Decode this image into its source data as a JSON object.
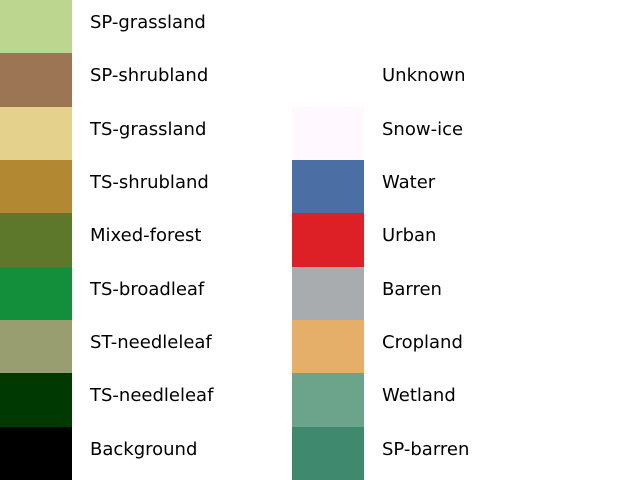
{
  "legend": {
    "left_column": [
      {
        "label": "SP-grassland",
        "color": "#bdd68f"
      },
      {
        "label": "SP-shrubland",
        "color": "#9c7654"
      },
      {
        "label": "TS-grassland",
        "color": "#e4d28c"
      },
      {
        "label": "TS-shrubland",
        "color": "#b38832"
      },
      {
        "label": "Mixed-forest",
        "color": "#5e782b"
      },
      {
        "label": "TS-broadleaf",
        "color": "#138f3c"
      },
      {
        "label": "ST-needleleaf",
        "color": "#989e70"
      },
      {
        "label": "TS-needleleaf",
        "color": "#003902"
      },
      {
        "label": "Background",
        "color": "#000000"
      }
    ],
    "right_column": [
      {
        "label": "",
        "color": "#ffffff"
      },
      {
        "label": "Unknown",
        "color": "#ffffff"
      },
      {
        "label": "Snow-ice",
        "color": "#fff8fe"
      },
      {
        "label": "Water",
        "color": "#4b6ea5"
      },
      {
        "label": "Urban",
        "color": "#dd2026"
      },
      {
        "label": "Barren",
        "color": "#a9acae"
      },
      {
        "label": "Cropland",
        "color": "#e6af69"
      },
      {
        "label": "Wetland",
        "color": "#6ba48a"
      },
      {
        "label": "SP-barren",
        "color": "#3f8a6f"
      }
    ]
  }
}
